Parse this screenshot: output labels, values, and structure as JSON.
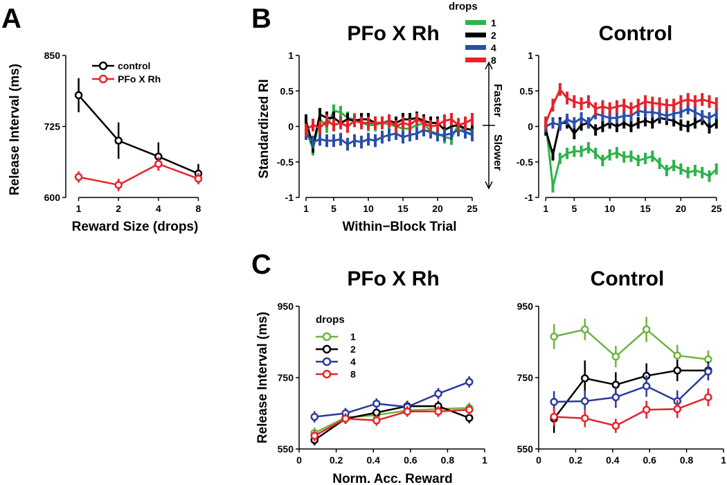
{
  "figure": {
    "panels": [
      "A",
      "B",
      "C"
    ]
  },
  "chart_data": [
    {
      "id": "A",
      "type": "line",
      "title": "",
      "xlabel": "Reward Size (drops)",
      "ylabel": "Release Interval (ms)",
      "xscale": "log2",
      "xlim": [
        0.8,
        10
      ],
      "ylim": [
        600,
        850
      ],
      "xticks": [
        1,
        2,
        4,
        8
      ],
      "yticks": [
        600,
        725,
        850
      ],
      "legend": {
        "placement": "top-right"
      },
      "series": [
        {
          "name": "control",
          "color": "#000000",
          "x": [
            1,
            2,
            4,
            8
          ],
          "values": [
            780,
            700,
            672,
            642
          ],
          "err": [
            30,
            32,
            25,
            17
          ]
        },
        {
          "name": "PFo X Rh",
          "color": "#e8212a",
          "x": [
            1,
            2,
            4,
            8
          ],
          "values": [
            636,
            622,
            659,
            633
          ],
          "err": [
            10,
            11,
            12,
            10
          ]
        }
      ]
    },
    {
      "id": "B-left",
      "type": "line",
      "title": "PFo X Rh",
      "xlabel": "Within−Block Trial",
      "ylabel": "Standardized RI",
      "xlim": [
        0,
        26
      ],
      "ylim": [
        -1,
        1
      ],
      "xticks": [
        1,
        5,
        10,
        15,
        20,
        25
      ],
      "yticks": [
        -1,
        -0.5,
        0,
        0.5,
        1
      ],
      "annotations": {
        "up": "Faster",
        "down": "Slower"
      },
      "legend": {
        "placement": "top-right",
        "title": "drops"
      },
      "series": [
        {
          "name": "1",
          "color": "#2db24a",
          "err": 0.09,
          "values": [
            -0.05,
            -0.32,
            0.1,
            0.0,
            0.22,
            0.2,
            0.12,
            0.1,
            0.05,
            0.02,
            0.02,
            0.05,
            0.03,
            0.0,
            -0.03,
            -0.03,
            0.02,
            0.04,
            -0.07,
            -0.1,
            -0.15,
            -0.17,
            0.03,
            -0.08,
            -0.1
          ]
        },
        {
          "name": "2",
          "color": "#000000",
          "err": 0.09,
          "values": [
            0.08,
            -0.28,
            0.17,
            0.12,
            0.12,
            0.05,
            0.1,
            0.08,
            0.1,
            0.1,
            0.05,
            0.05,
            0.08,
            0.05,
            0.1,
            0.1,
            0.12,
            0.08,
            0.05,
            0.05,
            -0.05,
            0.0,
            0.02,
            -0.03,
            -0.05
          ]
        },
        {
          "name": "4",
          "color": "#2b4fa8",
          "err": 0.09,
          "values": [
            -0.1,
            -0.22,
            -0.18,
            -0.2,
            -0.2,
            -0.18,
            -0.25,
            -0.2,
            -0.22,
            -0.18,
            -0.2,
            -0.15,
            -0.12,
            -0.1,
            -0.15,
            -0.12,
            -0.1,
            -0.05,
            -0.08,
            -0.12,
            -0.12,
            -0.1,
            -0.05,
            -0.08,
            -0.12
          ]
        },
        {
          "name": "8",
          "color": "#e8212a",
          "err": 0.09,
          "values": [
            -0.05,
            0.02,
            -0.02,
            0.08,
            0.02,
            0.05,
            0.0,
            0.08,
            0.05,
            0.05,
            0.05,
            0.05,
            0.08,
            0.0,
            0.05,
            0.02,
            0.1,
            0.05,
            0.0,
            0.02,
            0.08,
            0.1,
            0.02,
            0.05,
            0.1
          ]
        }
      ]
    },
    {
      "id": "B-right",
      "type": "line",
      "title": "Control",
      "xlabel": "",
      "ylabel": "",
      "xlim": [
        0,
        26
      ],
      "ylim": [
        -1,
        1
      ],
      "xticks": [
        1,
        5,
        10,
        15,
        20,
        25
      ],
      "yticks": [
        -1,
        -0.5,
        0,
        0.5,
        1
      ],
      "series": [
        {
          "name": "1",
          "color": "#2db24a",
          "err": 0.08,
          "values": [
            0.05,
            -0.85,
            -0.45,
            -0.38,
            -0.35,
            -0.35,
            -0.3,
            -0.38,
            -0.48,
            -0.4,
            -0.37,
            -0.43,
            -0.42,
            -0.48,
            -0.45,
            -0.42,
            -0.52,
            -0.62,
            -0.55,
            -0.6,
            -0.65,
            -0.62,
            -0.65,
            -0.7,
            -0.6
          ]
        },
        {
          "name": "2",
          "color": "#000000",
          "err": 0.08,
          "values": [
            -0.05,
            -0.4,
            0.05,
            0.05,
            -0.1,
            0.02,
            0.05,
            -0.05,
            0.0,
            0.05,
            0.0,
            0.05,
            0.0,
            0.05,
            0.08,
            0.05,
            0.12,
            0.1,
            0.08,
            0.02,
            0.0,
            0.05,
            0.1,
            -0.02,
            0.05
          ]
        },
        {
          "name": "4",
          "color": "#2b4fa8",
          "err": 0.08,
          "values": [
            0.0,
            0.05,
            0.02,
            0.1,
            0.05,
            0.12,
            0.05,
            0.18,
            0.15,
            0.12,
            0.12,
            0.15,
            0.15,
            0.22,
            0.2,
            0.2,
            0.18,
            0.15,
            0.18,
            0.2,
            0.25,
            0.2,
            0.15,
            0.12,
            0.18
          ]
        },
        {
          "name": "8",
          "color": "#e8212a",
          "err": 0.09,
          "values": [
            0.05,
            0.3,
            0.52,
            0.4,
            0.35,
            0.32,
            0.35,
            0.25,
            0.28,
            0.25,
            0.28,
            0.3,
            0.25,
            0.3,
            0.35,
            0.33,
            0.32,
            0.3,
            0.3,
            0.35,
            0.38,
            0.35,
            0.38,
            0.35,
            0.32
          ]
        }
      ]
    },
    {
      "id": "C-left",
      "type": "line",
      "title": "PFo X Rh",
      "xlabel": "Norm. Acc. Reward",
      "ylabel": "Release Interval (ms)",
      "xlim": [
        0,
        1
      ],
      "ylim": [
        550,
        950
      ],
      "xticks": [
        0,
        0.2,
        0.4,
        0.6,
        0.8,
        1
      ],
      "yticks": [
        550,
        750,
        950
      ],
      "legend": {
        "placement": "top-left",
        "title": "drops"
      },
      "series": [
        {
          "name": "1",
          "color": "#6db33f",
          "x": [
            0.083,
            0.25,
            0.417,
            0.583,
            0.75,
            0.917
          ],
          "values": [
            595,
            638,
            645,
            658,
            662,
            665
          ],
          "err": [
            15,
            15,
            15,
            15,
            15,
            15
          ]
        },
        {
          "name": "2",
          "color": "#000000",
          "x": [
            0.083,
            0.25,
            0.417,
            0.583,
            0.75,
            0.917
          ],
          "values": [
            575,
            635,
            652,
            670,
            670,
            637
          ],
          "err": [
            15,
            15,
            15,
            15,
            15,
            15
          ]
        },
        {
          "name": "4",
          "color": "#2b3a9a",
          "x": [
            0.083,
            0.25,
            0.417,
            0.583,
            0.75,
            0.917
          ],
          "values": [
            640,
            650,
            677,
            668,
            705,
            738
          ],
          "err": [
            16,
            15,
            15,
            15,
            16,
            16
          ]
        },
        {
          "name": "8",
          "color": "#e8212a",
          "x": [
            0.083,
            0.25,
            0.417,
            0.583,
            0.75,
            0.917
          ],
          "values": [
            587,
            635,
            630,
            655,
            655,
            660
          ],
          "err": [
            15,
            15,
            15,
            15,
            15,
            15
          ]
        }
      ]
    },
    {
      "id": "C-right",
      "type": "line",
      "title": "Control",
      "xlabel": "",
      "ylabel": "",
      "xlim": [
        0,
        1
      ],
      "ylim": [
        550,
        950
      ],
      "xticks": [
        0,
        0.2,
        0.4,
        0.6,
        0.8,
        1
      ],
      "yticks": [
        550,
        750,
        950
      ],
      "series": [
        {
          "name": "1",
          "color": "#6db33f",
          "x": [
            0.083,
            0.25,
            0.417,
            0.583,
            0.75,
            0.917
          ],
          "values": [
            865,
            885,
            809,
            885,
            812,
            801
          ],
          "err": [
            35,
            30,
            30,
            35,
            30,
            25
          ]
        },
        {
          "name": "2",
          "color": "#000000",
          "x": [
            0.083,
            0.25,
            0.417,
            0.583,
            0.75,
            0.917
          ],
          "values": [
            635,
            748,
            730,
            755,
            770,
            770
          ],
          "err": [
            40,
            50,
            35,
            35,
            30,
            25
          ]
        },
        {
          "name": "4",
          "color": "#2b3a9a",
          "x": [
            0.083,
            0.25,
            0.417,
            0.583,
            0.75,
            0.917
          ],
          "values": [
            682,
            684,
            695,
            726,
            684,
            767
          ],
          "err": [
            30,
            30,
            30,
            30,
            30,
            25
          ]
        },
        {
          "name": "8",
          "color": "#e8212a",
          "x": [
            0.083,
            0.25,
            0.417,
            0.583,
            0.75,
            0.917
          ],
          "values": [
            640,
            636,
            615,
            660,
            662,
            695
          ],
          "err": [
            25,
            25,
            20,
            25,
            25,
            25
          ]
        }
      ]
    }
  ]
}
